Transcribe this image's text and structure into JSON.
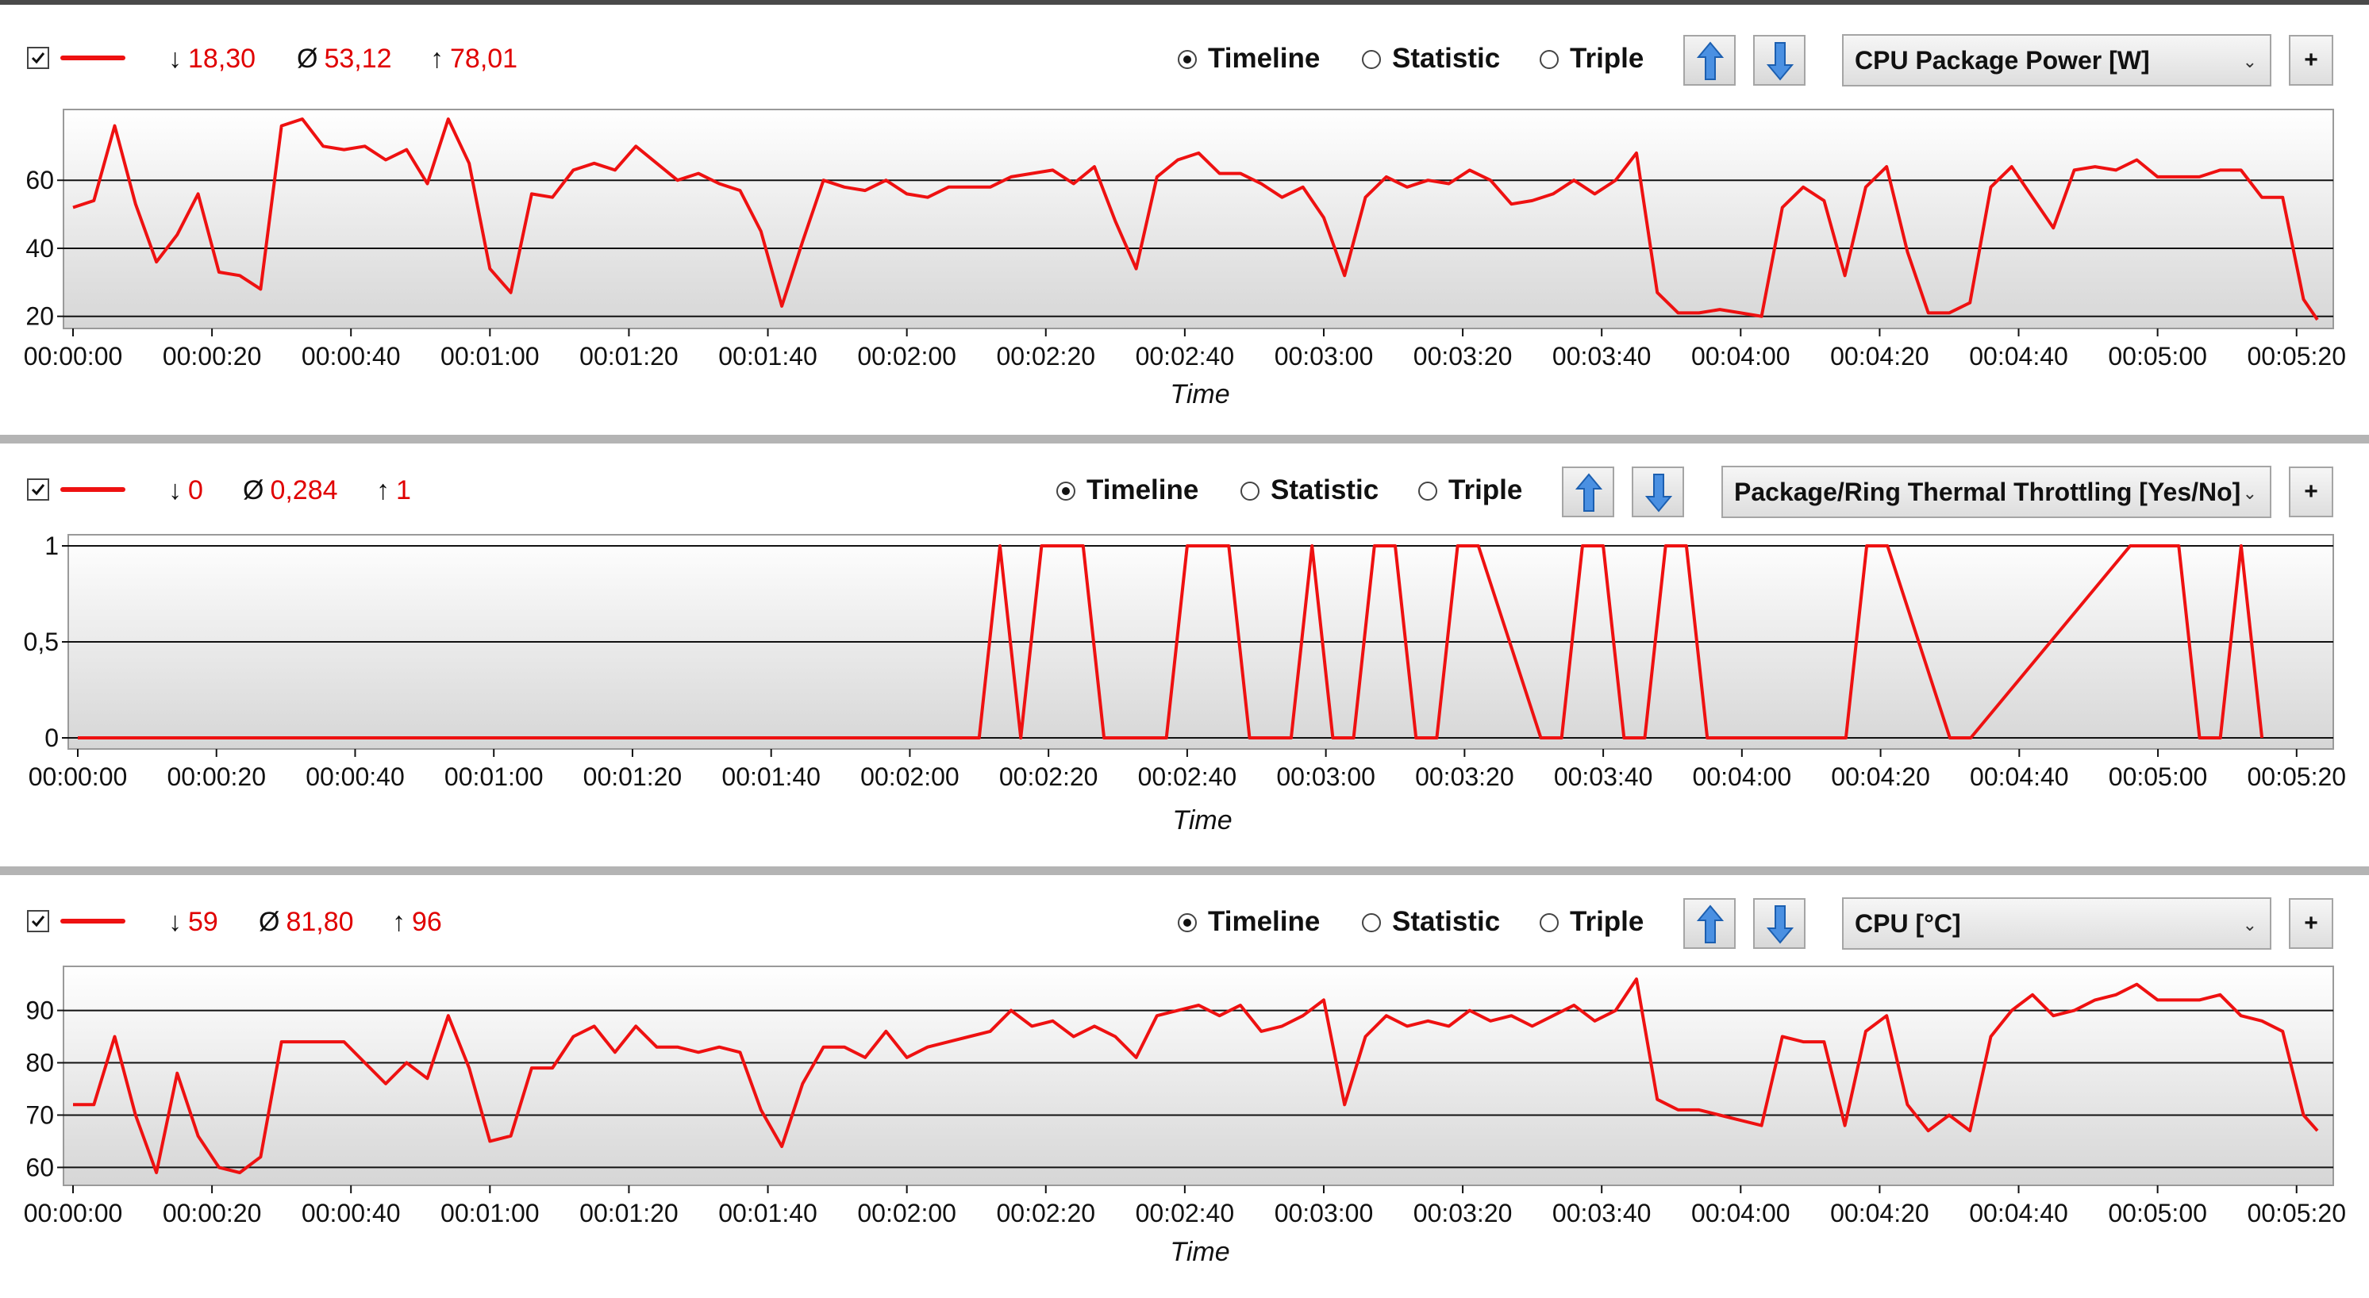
{
  "colors": {
    "series": "#ee1111",
    "stat_text": "#e00000",
    "grid": "#111111"
  },
  "icons": {
    "checkbox": "checkmark",
    "up_button": "blue-arrow-up-icon",
    "down_button": "blue-arrow-down-icon",
    "dropdown": "chevron-down-icon"
  },
  "common": {
    "radios": [
      "Timeline",
      "Statistic",
      "Triple"
    ],
    "selected_radio": "Timeline",
    "plus_label": "+",
    "min_symbol": "↓",
    "avg_symbol": "Ø",
    "max_symbol": "↑",
    "chevron": "⌄"
  },
  "panels": [
    {
      "checked": true,
      "stats": {
        "min": "18,30",
        "avg": "53,12",
        "max": "78,01"
      },
      "selected_sensor": "CPU Package Power [W]"
    },
    {
      "checked": true,
      "stats": {
        "min": "0",
        "avg": "0,284",
        "max": "1"
      },
      "selected_sensor": "Package/Ring Thermal Throttling [Yes/No]"
    },
    {
      "checked": true,
      "stats": {
        "min": "59",
        "avg": "81,80",
        "max": "96"
      },
      "selected_sensor": "CPU [°C]"
    }
  ],
  "chart_data": [
    {
      "type": "line",
      "title": "CPU Package Power [W]",
      "xlabel": "Time",
      "ylabel": "",
      "x_unit": "seconds",
      "xlim": [
        0,
        323
      ],
      "ylim": [
        18.3,
        78.01
      ],
      "yticks": [
        20,
        40,
        60
      ],
      "ytick_labels": [
        "20",
        "40",
        "60"
      ],
      "xticks": [
        0,
        20,
        40,
        60,
        80,
        100,
        120,
        140,
        160,
        180,
        200,
        220,
        240,
        260,
        280,
        300,
        320
      ],
      "xtick_labels": [
        "00:00:00",
        "00:00:20",
        "00:00:40",
        "00:01:00",
        "00:01:20",
        "00:01:40",
        "00:02:00",
        "00:02:20",
        "00:02:40",
        "00:03:00",
        "00:03:20",
        "00:03:40",
        "00:04:00",
        "00:04:20",
        "00:04:40",
        "00:05:00",
        "00:05:20"
      ],
      "grid": true,
      "series": [
        {
          "color": "#ee1111",
          "x": [
            0,
            3,
            6,
            9,
            12,
            15,
            18,
            21,
            24,
            27,
            30,
            33,
            36,
            39,
            42,
            45,
            48,
            51,
            54,
            57,
            60,
            63,
            66,
            69,
            72,
            75,
            78,
            81,
            84,
            87,
            90,
            93,
            96,
            99,
            102,
            105,
            108,
            111,
            114,
            117,
            120,
            123,
            126,
            129,
            132,
            135,
            138,
            141,
            144,
            147,
            150,
            153,
            156,
            159,
            162,
            165,
            168,
            171,
            174,
            177,
            180,
            183,
            186,
            189,
            192,
            195,
            198,
            201,
            204,
            207,
            210,
            213,
            216,
            219,
            222,
            225,
            228,
            231,
            234,
            237,
            240,
            243,
            246,
            249,
            252,
            255,
            258,
            261,
            264,
            267,
            270,
            273,
            276,
            279,
            282,
            285,
            288,
            291,
            294,
            297,
            300,
            303,
            306,
            309,
            312,
            315,
            318,
            321,
            323
          ],
          "y": [
            52,
            54,
            76,
            53,
            36,
            44,
            56,
            33,
            32,
            28,
            76,
            78,
            70,
            69,
            70,
            66,
            69,
            59,
            78,
            65,
            34,
            27,
            56,
            55,
            63,
            65,
            63,
            70,
            65,
            60,
            62,
            59,
            57,
            45,
            23,
            42,
            60,
            58,
            57,
            60,
            56,
            55,
            58,
            58,
            58,
            61,
            62,
            63,
            59,
            64,
            48,
            34,
            61,
            66,
            68,
            62,
            62,
            59,
            55,
            58,
            49,
            32,
            55,
            61,
            58,
            60,
            59,
            63,
            60,
            53,
            54,
            56,
            60,
            56,
            60,
            68,
            27,
            21,
            21,
            22,
            21,
            20,
            52,
            58,
            54,
            32,
            58,
            64,
            39,
            21,
            21,
            24,
            58,
            64,
            55,
            46,
            63,
            64,
            63,
            66,
            61,
            61,
            61,
            63,
            63,
            55,
            55,
            25,
            19
          ]
        }
      ]
    },
    {
      "type": "line",
      "title": "Package/Ring Thermal Throttling [Yes/No]",
      "xlabel": "Time",
      "ylabel": "",
      "x_unit": "seconds",
      "xlim": [
        0,
        323
      ],
      "ylim": [
        0,
        1
      ],
      "yticks": [
        0,
        0.5,
        1
      ],
      "ytick_labels": [
        "0",
        "0,5",
        "1"
      ],
      "xticks": [
        0,
        20,
        40,
        60,
        80,
        100,
        120,
        140,
        160,
        180,
        200,
        220,
        240,
        260,
        280,
        300,
        320
      ],
      "xtick_labels": [
        "00:00:00",
        "00:00:20",
        "00:00:40",
        "00:01:00",
        "00:01:20",
        "00:01:40",
        "00:02:00",
        "00:02:20",
        "00:02:40",
        "00:03:00",
        "00:03:20",
        "00:03:40",
        "00:04:00",
        "00:04:20",
        "00:04:40",
        "00:05:00",
        "00:05:20"
      ],
      "grid": true,
      "series": [
        {
          "color": "#ee1111",
          "x": [
            0,
            130,
            133,
            136,
            139,
            145,
            148,
            157,
            160,
            166,
            169,
            175,
            178,
            181,
            184,
            187,
            190,
            193,
            196,
            199,
            202,
            211,
            214,
            217,
            220,
            223,
            226,
            229,
            232,
            235,
            255,
            258,
            261,
            270,
            273,
            296,
            300,
            303,
            306,
            309,
            312,
            315
          ],
          "y": [
            0,
            0,
            1,
            0,
            1,
            1,
            0,
            0,
            1,
            1,
            0,
            0,
            1,
            0,
            0,
            1,
            1,
            0,
            0,
            1,
            1,
            0,
            0,
            1,
            1,
            0,
            0,
            1,
            1,
            0,
            0,
            1,
            1,
            0,
            0,
            1,
            1,
            1,
            0,
            0,
            1,
            0
          ]
        }
      ]
    },
    {
      "type": "line",
      "title": "CPU [°C]",
      "xlabel": "Time",
      "ylabel": "",
      "x_unit": "seconds",
      "xlim": [
        0,
        323
      ],
      "ylim": [
        59,
        96
      ],
      "yticks": [
        60,
        70,
        80,
        90
      ],
      "ytick_labels": [
        "60",
        "70",
        "80",
        "90"
      ],
      "xticks": [
        0,
        20,
        40,
        60,
        80,
        100,
        120,
        140,
        160,
        180,
        200,
        220,
        240,
        260,
        280,
        300,
        320
      ],
      "xtick_labels": [
        "00:00:00",
        "00:00:20",
        "00:00:40",
        "00:01:00",
        "00:01:20",
        "00:01:40",
        "00:02:00",
        "00:02:20",
        "00:02:40",
        "00:03:00",
        "00:03:20",
        "00:03:40",
        "00:04:00",
        "00:04:20",
        "00:04:40",
        "00:05:00",
        "00:05:20"
      ],
      "grid": true,
      "series": [
        {
          "color": "#ee1111",
          "x": [
            0,
            3,
            6,
            9,
            12,
            15,
            18,
            21,
            24,
            27,
            30,
            33,
            36,
            39,
            42,
            45,
            48,
            51,
            54,
            57,
            60,
            63,
            66,
            69,
            72,
            75,
            78,
            81,
            84,
            87,
            90,
            93,
            96,
            99,
            102,
            105,
            108,
            111,
            114,
            117,
            120,
            123,
            126,
            129,
            132,
            135,
            138,
            141,
            144,
            147,
            150,
            153,
            156,
            159,
            162,
            165,
            168,
            171,
            174,
            177,
            180,
            183,
            186,
            189,
            192,
            195,
            198,
            201,
            204,
            207,
            210,
            213,
            216,
            219,
            222,
            225,
            228,
            231,
            234,
            237,
            240,
            243,
            246,
            249,
            252,
            255,
            258,
            261,
            264,
            267,
            270,
            273,
            276,
            279,
            282,
            285,
            288,
            291,
            294,
            297,
            300,
            303,
            306,
            309,
            312,
            315,
            318,
            321,
            323
          ],
          "y": [
            72,
            72,
            85,
            70,
            59,
            78,
            66,
            60,
            59,
            62,
            84,
            84,
            84,
            84,
            80,
            76,
            80,
            77,
            89,
            79,
            65,
            66,
            79,
            79,
            85,
            87,
            82,
            87,
            83,
            83,
            82,
            83,
            82,
            71,
            64,
            76,
            83,
            83,
            81,
            86,
            81,
            83,
            84,
            85,
            86,
            90,
            87,
            88,
            85,
            87,
            85,
            81,
            89,
            90,
            91,
            89,
            91,
            86,
            87,
            89,
            92,
            72,
            85,
            89,
            87,
            88,
            87,
            90,
            88,
            89,
            87,
            89,
            91,
            88,
            90,
            96,
            73,
            71,
            71,
            70,
            69,
            68,
            85,
            84,
            84,
            68,
            86,
            89,
            72,
            67,
            70,
            67,
            85,
            90,
            93,
            89,
            90,
            92,
            93,
            95,
            92,
            92,
            92,
            93,
            89,
            88,
            86,
            70,
            67
          ]
        }
      ]
    }
  ]
}
